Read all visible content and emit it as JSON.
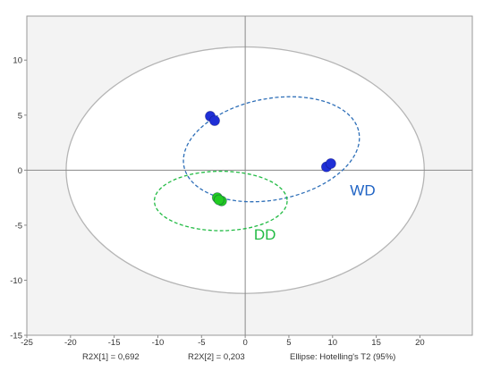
{
  "chart_data": {
    "type": "scatter",
    "title": "",
    "xlabel": "",
    "ylabel": "",
    "xlim": [
      -25,
      26
    ],
    "ylim": [
      -15,
      14
    ],
    "x_ticks": [
      -25,
      -20,
      -15,
      -10,
      -5,
      0,
      5,
      10,
      15,
      20
    ],
    "y_ticks": [
      -15,
      -10,
      -5,
      0,
      5,
      10
    ],
    "grid": false,
    "series": [
      {
        "name": "WD",
        "color": "#1f2fd6",
        "points": [
          {
            "x": -4.0,
            "y": 4.9
          },
          {
            "x": -3.5,
            "y": 4.5
          },
          {
            "x": 9.3,
            "y": 0.3
          },
          {
            "x": 9.8,
            "y": 0.6
          }
        ],
        "ellipse": {
          "cx": 3.0,
          "cy": 1.9,
          "rx": 10.2,
          "ry": 4.6,
          "angle_deg": -11,
          "style": "dashed",
          "color": "#2e6fb8"
        }
      },
      {
        "name": "DD",
        "color": "#22cc22",
        "points": [
          {
            "x": -3.2,
            "y": -2.5
          },
          {
            "x": -2.7,
            "y": -2.8
          },
          {
            "x": -3.0,
            "y": -2.7
          }
        ],
        "ellipse": {
          "cx": -2.8,
          "cy": -2.8,
          "rx": 7.6,
          "ry": 2.7,
          "angle_deg": 0,
          "style": "dashed",
          "color": "#22bb44"
        }
      }
    ],
    "reference_ellipse": {
      "cx": 0,
      "cy": 0,
      "rx": 20.5,
      "ry": 11.2,
      "color": "#b5b5b5",
      "fill": "#ffffff"
    },
    "plot_background": "#f3f3f3",
    "group_labels": [
      {
        "text": "WD",
        "x": 12.0,
        "y": -2.3,
        "color": "#1f63c4"
      },
      {
        "text": "DD",
        "x": 1.0,
        "y": -6.3,
        "color": "#22bb44"
      }
    ],
    "footer": {
      "r2x1": "R2X[1] = 0,692",
      "r2x2": "R2X[2] = 0,203",
      "ellipse_note": "Ellipse: Hotelling's T2 (95%)"
    }
  }
}
